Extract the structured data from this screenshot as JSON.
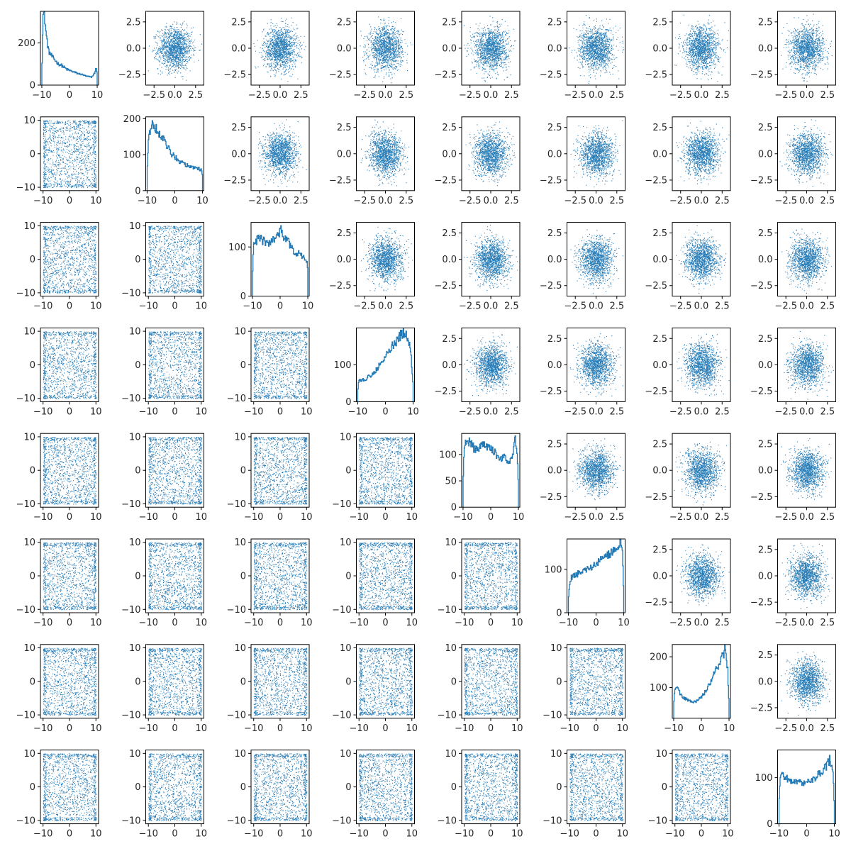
{
  "chart_data": {
    "type": "scatter",
    "layout": "pair-plot grid",
    "grid_size": 8,
    "series_color": "#1f77b4",
    "axis_color": "#000000",
    "diagonal": {
      "type": "histogram",
      "x_ticks": [
        -10,
        0,
        10
      ],
      "x_tick_labels": [
        "−10",
        "0",
        "10"
      ],
      "x_range": [
        -10.5,
        10.5
      ],
      "panels": [
        {
          "ylim": [
            0,
            350
          ],
          "y_ticks": [
            0,
            200
          ],
          "y_tick_labels": [
            "0",
            "200"
          ],
          "profile": [
            [
              -10,
              40
            ],
            [
              -9.6,
              330
            ],
            [
              -9.2,
              340
            ],
            [
              -8.8,
              300
            ],
            [
              -8.4,
              240
            ],
            [
              -8,
              200
            ],
            [
              -7.5,
              160
            ],
            [
              -7,
              150
            ],
            [
              -6,
              130
            ],
            [
              -5,
              115
            ],
            [
              -4,
              100
            ],
            [
              -3,
              95
            ],
            [
              -2,
              85
            ],
            [
              -1,
              75
            ],
            [
              0,
              70
            ],
            [
              1,
              65
            ],
            [
              2,
              60
            ],
            [
              3,
              55
            ],
            [
              4,
              52
            ],
            [
              5,
              48
            ],
            [
              6,
              42
            ],
            [
              7,
              40
            ],
            [
              8,
              38
            ],
            [
              9,
              55
            ],
            [
              9.6,
              80
            ],
            [
              10,
              60
            ]
          ]
        },
        {
          "ylim": [
            0,
            205
          ],
          "y_ticks": [
            0,
            100,
            200
          ],
          "y_tick_labels": [
            "0",
            "100",
            "200"
          ],
          "profile": [
            [
              -10,
              50
            ],
            [
              -9.5,
              150
            ],
            [
              -9,
              160
            ],
            [
              -8.5,
              175
            ],
            [
              -8,
              185
            ],
            [
              -7,
              175
            ],
            [
              -6,
              160
            ],
            [
              -5,
              150
            ],
            [
              -4,
              140
            ],
            [
              -3,
              125
            ],
            [
              -2,
              115
            ],
            [
              -1,
              100
            ],
            [
              0,
              95
            ],
            [
              1,
              85
            ],
            [
              2,
              80
            ],
            [
              3,
              75
            ],
            [
              4,
              72
            ],
            [
              5,
              68
            ],
            [
              6,
              65
            ],
            [
              7,
              65
            ],
            [
              8,
              62
            ],
            [
              9,
              60
            ],
            [
              9.8,
              55
            ],
            [
              10,
              30
            ]
          ]
        },
        {
          "ylim": [
            0,
            150
          ],
          "y_ticks": [
            0,
            100
          ],
          "y_tick_labels": [
            "0",
            "100"
          ],
          "profile": [
            [
              -10,
              40
            ],
            [
              -9.5,
              105
            ],
            [
              -9,
              110
            ],
            [
              -8,
              115
            ],
            [
              -7,
              118
            ],
            [
              -6,
              112
            ],
            [
              -5,
              108
            ],
            [
              -4,
              105
            ],
            [
              -3,
              110
            ],
            [
              -2,
              115
            ],
            [
              -1,
              125
            ],
            [
              0,
              130
            ],
            [
              0.5,
              138
            ],
            [
              1,
              125
            ],
            [
              2,
              115
            ],
            [
              3,
              110
            ],
            [
              4,
              100
            ],
            [
              5,
              90
            ],
            [
              6,
              88
            ],
            [
              7,
              85
            ],
            [
              8,
              80
            ],
            [
              9,
              78
            ],
            [
              9.8,
              70
            ],
            [
              10,
              40
            ]
          ]
        },
        {
          "ylim": [
            0,
            200
          ],
          "y_ticks": [
            0,
            100
          ],
          "y_tick_labels": [
            "0",
            "100"
          ],
          "profile": [
            [
              -10,
              30
            ],
            [
              -9.5,
              60
            ],
            [
              -9,
              58
            ],
            [
              -8,
              60
            ],
            [
              -7,
              62
            ],
            [
              -6,
              68
            ],
            [
              -5,
              72
            ],
            [
              -4,
              80
            ],
            [
              -3,
              90
            ],
            [
              -2,
              100
            ],
            [
              -1,
              110
            ],
            [
              0,
              125
            ],
            [
              1,
              135
            ],
            [
              2,
              148
            ],
            [
              3,
              155
            ],
            [
              4,
              165
            ],
            [
              5,
              175
            ],
            [
              6,
              185
            ],
            [
              7,
              190
            ],
            [
              8,
              175
            ],
            [
              9,
              150
            ],
            [
              9.5,
              100
            ],
            [
              10,
              40
            ]
          ]
        },
        {
          "ylim": [
            0,
            140
          ],
          "y_ticks": [
            0,
            50,
            100
          ],
          "y_tick_labels": [
            "0",
            "50",
            "100"
          ],
          "profile": [
            [
              -10,
              40
            ],
            [
              -9.6,
              120
            ],
            [
              -9,
              128
            ],
            [
              -8,
              125
            ],
            [
              -7,
              120
            ],
            [
              -6,
              112
            ],
            [
              -5,
              108
            ],
            [
              -4,
              115
            ],
            [
              -3,
              120
            ],
            [
              -2,
              118
            ],
            [
              -1,
              115
            ],
            [
              0,
              110
            ],
            [
              1,
              108
            ],
            [
              2,
              100
            ],
            [
              3,
              95
            ],
            [
              4,
              92
            ],
            [
              5,
              100
            ],
            [
              6,
              90
            ],
            [
              7,
              88
            ],
            [
              8,
              100
            ],
            [
              8.5,
              120
            ],
            [
              9,
              130
            ],
            [
              9.5,
              110
            ],
            [
              10,
              40
            ]
          ]
        },
        {
          "ylim": [
            0,
            170
          ],
          "y_ticks": [
            0,
            100
          ],
          "y_tick_labels": [
            "0",
            "100"
          ],
          "profile": [
            [
              -10,
              30
            ],
            [
              -9.5,
              70
            ],
            [
              -9,
              80
            ],
            [
              -8,
              85
            ],
            [
              -7,
              88
            ],
            [
              -6,
              92
            ],
            [
              -5,
              95
            ],
            [
              -4,
              96
            ],
            [
              -3,
              100
            ],
            [
              -2,
              105
            ],
            [
              -1,
              108
            ],
            [
              0,
              112
            ],
            [
              1,
              118
            ],
            [
              2,
              122
            ],
            [
              3,
              125
            ],
            [
              4,
              130
            ],
            [
              5,
              135
            ],
            [
              6,
              140
            ],
            [
              7,
              145
            ],
            [
              8,
              150
            ],
            [
              8.5,
              158
            ],
            [
              9,
              160
            ],
            [
              9.5,
              150
            ],
            [
              10,
              40
            ]
          ]
        },
        {
          "ylim": [
            0,
            240
          ],
          "y_ticks": [
            100,
            200
          ],
          "y_tick_labels": [
            "100",
            "200"
          ],
          "profile": [
            [
              -10,
              40
            ],
            [
              -9.6,
              90
            ],
            [
              -9,
              100
            ],
            [
              -8,
              85
            ],
            [
              -7,
              72
            ],
            [
              -6,
              65
            ],
            [
              -5,
              60
            ],
            [
              -4,
              55
            ],
            [
              -3,
              52
            ],
            [
              -2,
              55
            ],
            [
              -1,
              60
            ],
            [
              0,
              70
            ],
            [
              1,
              80
            ],
            [
              2,
              95
            ],
            [
              3,
              110
            ],
            [
              4,
              130
            ],
            [
              5,
              150
            ],
            [
              6,
              170
            ],
            [
              7,
              190
            ],
            [
              8,
              210
            ],
            [
              8.5,
              225
            ],
            [
              9,
              200
            ],
            [
              9.5,
              160
            ],
            [
              10,
              40
            ]
          ]
        },
        {
          "ylim": [
            0,
            160
          ],
          "y_ticks": [
            0,
            100
          ],
          "y_tick_labels": [
            "0",
            "100"
          ],
          "profile": [
            [
              -10,
              40
            ],
            [
              -9.6,
              100
            ],
            [
              -9,
              105
            ],
            [
              -8,
              102
            ],
            [
              -7,
              98
            ],
            [
              -6,
              95
            ],
            [
              -5,
              92
            ],
            [
              -4,
              90
            ],
            [
              -3,
              92
            ],
            [
              -2,
              90
            ],
            [
              -1,
              88
            ],
            [
              0,
              90
            ],
            [
              1,
              92
            ],
            [
              2,
              95
            ],
            [
              3,
              100
            ],
            [
              4,
              105
            ],
            [
              5,
              110
            ],
            [
              6,
              118
            ],
            [
              7,
              125
            ],
            [
              8,
              135
            ],
            [
              8.5,
              140
            ],
            [
              9,
              128
            ],
            [
              9.5,
              110
            ],
            [
              10,
              40
            ]
          ]
        }
      ]
    },
    "upper_triangle": {
      "type": "scatter",
      "description_of_values": "gaussian cloud, mean 0, sd 1",
      "x_ticks": [
        -2.5,
        0.0,
        2.5
      ],
      "x_tick_labels": [
        "−2.5",
        "0.0",
        "2.5"
      ],
      "y_ticks": [
        -2.5,
        0.0,
        2.5
      ],
      "y_tick_labels": [
        "−2.5",
        "0.0",
        "2.5"
      ],
      "x_range": [
        -3.5,
        3.5
      ],
      "y_range": [
        -3.5,
        3.5
      ],
      "points_per_panel": 1400
    },
    "lower_triangle": {
      "type": "scatter",
      "description_of_values": "uniform field over [-10, 10] x [-10, 10]",
      "x_ticks": [
        -10,
        0,
        10
      ],
      "x_tick_labels": [
        "−10",
        "0",
        "10"
      ],
      "y_ticks": [
        -10,
        0,
        10
      ],
      "y_tick_labels": [
        "−10",
        "0",
        "10"
      ],
      "x_range": [
        -11,
        11
      ],
      "y_range": [
        -11,
        11
      ],
      "points_per_panel": 1400
    }
  }
}
